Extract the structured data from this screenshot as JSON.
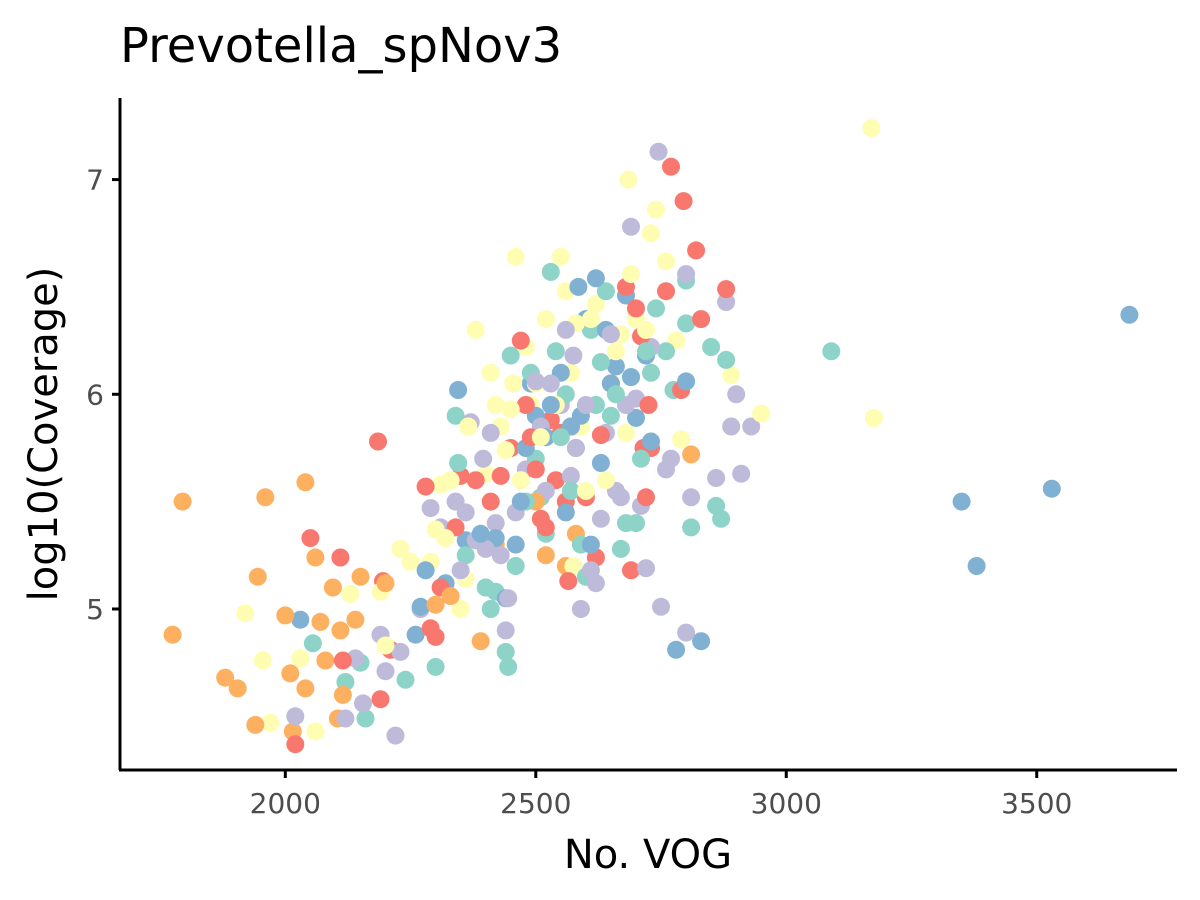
{
  "chart_data": {
    "type": "scatter",
    "title": "Prevotella_spNov3",
    "xlabel": "No. VOG",
    "ylabel": "log10(Coverage)",
    "xlim": [
      1670,
      3780
    ],
    "ylim": [
      4.25,
      7.38
    ],
    "xticks": [
      2000,
      2500,
      3000,
      3500
    ],
    "yticks": [
      5,
      6,
      7
    ],
    "grid": false,
    "legend": "none",
    "colors": {
      "salmon": "#f8786f",
      "orange": "#fdb05f",
      "yellow": "#fefdb1",
      "teal": "#8dd3c7",
      "lavender": "#bebada",
      "blue": "#80b1d3"
    },
    "series": [
      {
        "color": "#fdb05f",
        "points": [
          [
            1775,
            4.88
          ],
          [
            1795,
            5.5
          ],
          [
            1880,
            4.68
          ],
          [
            1905,
            4.63
          ],
          [
            1940,
            4.46
          ],
          [
            1945,
            5.15
          ],
          [
            1960,
            5.52
          ],
          [
            2000,
            4.97
          ],
          [
            2010,
            4.7
          ],
          [
            2015,
            4.43
          ],
          [
            2040,
            5.59
          ],
          [
            2040,
            4.63
          ],
          [
            2060,
            5.24
          ],
          [
            2070,
            4.94
          ],
          [
            2080,
            4.76
          ],
          [
            2095,
            5.1
          ],
          [
            2105,
            4.49
          ],
          [
            2110,
            4.9
          ],
          [
            2115,
            4.6
          ],
          [
            2140,
            4.95
          ],
          [
            2150,
            5.15
          ],
          [
            2200,
            5.12
          ],
          [
            2300,
            5.02
          ],
          [
            2330,
            5.06
          ],
          [
            2390,
            4.85
          ],
          [
            2420,
            5.3
          ],
          [
            2500,
            5.5
          ],
          [
            2520,
            5.25
          ],
          [
            2560,
            5.2
          ],
          [
            2580,
            5.35
          ],
          [
            2810,
            5.72
          ]
        ]
      },
      {
        "color": "#f8786f",
        "points": [
          [
            2020,
            4.37
          ],
          [
            2050,
            5.33
          ],
          [
            2110,
            5.24
          ],
          [
            2115,
            4.76
          ],
          [
            2185,
            5.78
          ],
          [
            2190,
            4.58
          ],
          [
            2195,
            5.13
          ],
          [
            2210,
            4.81
          ],
          [
            2280,
            5.57
          ],
          [
            2290,
            4.91
          ],
          [
            2300,
            4.87
          ],
          [
            2310,
            5.1
          ],
          [
            2340,
            5.38
          ],
          [
            2350,
            5.62
          ],
          [
            2380,
            5.6
          ],
          [
            2410,
            5.5
          ],
          [
            2430,
            5.62
          ],
          [
            2450,
            5.75
          ],
          [
            2470,
            6.25
          ],
          [
            2480,
            5.95
          ],
          [
            2490,
            5.8
          ],
          [
            2500,
            5.65
          ],
          [
            2510,
            5.42
          ],
          [
            2520,
            5.38
          ],
          [
            2530,
            5.88
          ],
          [
            2540,
            5.6
          ],
          [
            2550,
            5.82
          ],
          [
            2560,
            5.5
          ],
          [
            2565,
            5.13
          ],
          [
            2570,
            5.85
          ],
          [
            2600,
            5.52
          ],
          [
            2620,
            5.24
          ],
          [
            2630,
            5.81
          ],
          [
            2650,
            6.05
          ],
          [
            2680,
            6.5
          ],
          [
            2690,
            5.18
          ],
          [
            2700,
            6.4
          ],
          [
            2710,
            6.27
          ],
          [
            2715,
            5.75
          ],
          [
            2720,
            5.52
          ],
          [
            2725,
            5.95
          ],
          [
            2730,
            5.75
          ],
          [
            2760,
            6.48
          ],
          [
            2770,
            7.06
          ],
          [
            2790,
            6.02
          ],
          [
            2795,
            6.9
          ],
          [
            2820,
            6.67
          ],
          [
            2830,
            6.35
          ],
          [
            2880,
            6.49
          ]
        ]
      },
      {
        "color": "#fefdb1",
        "points": [
          [
            1920,
            4.98
          ],
          [
            1955,
            4.76
          ],
          [
            1970,
            4.47
          ],
          [
            2030,
            4.77
          ],
          [
            2060,
            4.43
          ],
          [
            2130,
            5.07
          ],
          [
            2190,
            5.08
          ],
          [
            2200,
            4.83
          ],
          [
            2230,
            5.28
          ],
          [
            2250,
            5.22
          ],
          [
            2290,
            5.22
          ],
          [
            2300,
            5.37
          ],
          [
            2310,
            5.58
          ],
          [
            2320,
            5.33
          ],
          [
            2330,
            5.6
          ],
          [
            2350,
            5
          ],
          [
            2360,
            5.14
          ],
          [
            2365,
            5.85
          ],
          [
            2380,
            6.3
          ],
          [
            2400,
            5.63
          ],
          [
            2410,
            6.1
          ],
          [
            2420,
            5.95
          ],
          [
            2430,
            5.85
          ],
          [
            2440,
            5.74
          ],
          [
            2450,
            5.93
          ],
          [
            2455,
            6.05
          ],
          [
            2460,
            6.64
          ],
          [
            2470,
            5.6
          ],
          [
            2480,
            6.22
          ],
          [
            2490,
            5.95
          ],
          [
            2500,
            6.05
          ],
          [
            2510,
            5.8
          ],
          [
            2520,
            6.35
          ],
          [
            2540,
            5.95
          ],
          [
            2550,
            6.64
          ],
          [
            2560,
            6.48
          ],
          [
            2570,
            6.1
          ],
          [
            2575,
            5.2
          ],
          [
            2580,
            6.33
          ],
          [
            2590,
            5.85
          ],
          [
            2600,
            5.55
          ],
          [
            2610,
            6.35
          ],
          [
            2620,
            6.42
          ],
          [
            2640,
            5.6
          ],
          [
            2660,
            6.2
          ],
          [
            2670,
            6.28
          ],
          [
            2680,
            5.82
          ],
          [
            2685,
            7
          ],
          [
            2690,
            6.56
          ],
          [
            2700,
            6.35
          ],
          [
            2720,
            6.3
          ],
          [
            2730,
            6.75
          ],
          [
            2740,
            6.86
          ],
          [
            2760,
            6.62
          ],
          [
            2780,
            6.25
          ],
          [
            2790,
            5.79
          ],
          [
            2890,
            6.09
          ],
          [
            2950,
            5.91
          ],
          [
            3170,
            7.24
          ],
          [
            3175,
            5.89
          ]
        ]
      },
      {
        "color": "#8dd3c7",
        "points": [
          [
            2055,
            4.84
          ],
          [
            2120,
            4.66
          ],
          [
            2150,
            4.75
          ],
          [
            2160,
            4.49
          ],
          [
            2240,
            4.67
          ],
          [
            2300,
            4.73
          ],
          [
            2340,
            5.9
          ],
          [
            2345,
            5.68
          ],
          [
            2360,
            5.25
          ],
          [
            2400,
            5.1
          ],
          [
            2410,
            5
          ],
          [
            2420,
            5.08
          ],
          [
            2440,
            4.8
          ],
          [
            2445,
            4.73
          ],
          [
            2450,
            6.18
          ],
          [
            2460,
            5.2
          ],
          [
            2480,
            5.5
          ],
          [
            2490,
            6.1
          ],
          [
            2500,
            5.7
          ],
          [
            2510,
            5.52
          ],
          [
            2520,
            5.35
          ],
          [
            2530,
            6.57
          ],
          [
            2540,
            6.2
          ],
          [
            2550,
            5.8
          ],
          [
            2560,
            6
          ],
          [
            2570,
            5.55
          ],
          [
            2580,
            5.75
          ],
          [
            2590,
            5.3
          ],
          [
            2600,
            5.15
          ],
          [
            2610,
            6.3
          ],
          [
            2620,
            5.95
          ],
          [
            2630,
            6.15
          ],
          [
            2640,
            6.48
          ],
          [
            2650,
            5.9
          ],
          [
            2660,
            6
          ],
          [
            2670,
            5.28
          ],
          [
            2680,
            5.4
          ],
          [
            2690,
            6.08
          ],
          [
            2700,
            5.4
          ],
          [
            2710,
            5.7
          ],
          [
            2720,
            6.2
          ],
          [
            2730,
            6.1
          ],
          [
            2740,
            6.4
          ],
          [
            2760,
            6.2
          ],
          [
            2775,
            6.02
          ],
          [
            2800,
            6.53
          ],
          [
            2800,
            6.33
          ],
          [
            2810,
            5.38
          ],
          [
            2850,
            6.22
          ],
          [
            2870,
            5.42
          ],
          [
            2860,
            5.48
          ],
          [
            2880,
            6.16
          ],
          [
            3090,
            6.2
          ]
        ]
      },
      {
        "color": "#bebada",
        "points": [
          [
            2020,
            4.5
          ],
          [
            2120,
            4.49
          ],
          [
            2140,
            4.77
          ],
          [
            2155,
            4.56
          ],
          [
            2190,
            4.88
          ],
          [
            2200,
            4.71
          ],
          [
            2220,
            4.41
          ],
          [
            2230,
            4.8
          ],
          [
            2270,
            5
          ],
          [
            2290,
            5.47
          ],
          [
            2310,
            5.38
          ],
          [
            2340,
            5.5
          ],
          [
            2350,
            5.18
          ],
          [
            2360,
            5.45
          ],
          [
            2370,
            5.87
          ],
          [
            2380,
            5.32
          ],
          [
            2395,
            5.7
          ],
          [
            2400,
            5.28
          ],
          [
            2410,
            5.82
          ],
          [
            2420,
            5.4
          ],
          [
            2430,
            5.25
          ],
          [
            2440,
            4.9
          ],
          [
            2445,
            5.05
          ],
          [
            2460,
            5.45
          ],
          [
            2480,
            5.65
          ],
          [
            2500,
            6.06
          ],
          [
            2510,
            5.85
          ],
          [
            2520,
            5.55
          ],
          [
            2530,
            6.05
          ],
          [
            2550,
            5.95
          ],
          [
            2560,
            6.3
          ],
          [
            2570,
            5.62
          ],
          [
            2575,
            6.18
          ],
          [
            2580,
            5.75
          ],
          [
            2590,
            5
          ],
          [
            2600,
            5.95
          ],
          [
            2610,
            5.18
          ],
          [
            2620,
            5.12
          ],
          [
            2630,
            5.42
          ],
          [
            2640,
            5.82
          ],
          [
            2650,
            6.28
          ],
          [
            2660,
            5.55
          ],
          [
            2670,
            5.52
          ],
          [
            2680,
            5.95
          ],
          [
            2690,
            6.78
          ],
          [
            2700,
            5.98
          ],
          [
            2710,
            5.48
          ],
          [
            2720,
            5.19
          ],
          [
            2730,
            6.22
          ],
          [
            2745,
            7.13
          ],
          [
            2750,
            5.01
          ],
          [
            2760,
            5.65
          ],
          [
            2770,
            5.7
          ],
          [
            2800,
            6.56
          ],
          [
            2800,
            4.89
          ],
          [
            2810,
            5.52
          ],
          [
            2860,
            5.61
          ],
          [
            2880,
            6.43
          ],
          [
            2890,
            5.85
          ],
          [
            2900,
            6
          ],
          [
            2910,
            5.63
          ],
          [
            2930,
            5.85
          ]
        ]
      },
      {
        "color": "#80b1d3",
        "points": [
          [
            2030,
            4.95
          ],
          [
            2260,
            4.88
          ],
          [
            2270,
            5.01
          ],
          [
            2280,
            5.18
          ],
          [
            2320,
            5.12
          ],
          [
            2345,
            6.02
          ],
          [
            2360,
            5.32
          ],
          [
            2390,
            5.35
          ],
          [
            2420,
            5.33
          ],
          [
            2440,
            5.05
          ],
          [
            2460,
            5.3
          ],
          [
            2470,
            5.5
          ],
          [
            2480,
            5.75
          ],
          [
            2490,
            6.05
          ],
          [
            2500,
            5.9
          ],
          [
            2520,
            5.8
          ],
          [
            2530,
            5.95
          ],
          [
            2550,
            6.1
          ],
          [
            2560,
            5.45
          ],
          [
            2570,
            5.85
          ],
          [
            2585,
            6.5
          ],
          [
            2590,
            5.9
          ],
          [
            2600,
            6.35
          ],
          [
            2610,
            5.3
          ],
          [
            2620,
            6.54
          ],
          [
            2630,
            5.68
          ],
          [
            2640,
            6.3
          ],
          [
            2650,
            6.05
          ],
          [
            2660,
            6.13
          ],
          [
            2680,
            6.46
          ],
          [
            2690,
            6.08
          ],
          [
            2700,
            5.89
          ],
          [
            2720,
            6.18
          ],
          [
            2730,
            5.78
          ],
          [
            2780,
            4.81
          ],
          [
            2800,
            6.06
          ],
          [
            2830,
            4.85
          ],
          [
            3350,
            5.5
          ],
          [
            3380,
            5.2
          ],
          [
            3530,
            5.56
          ],
          [
            3685,
            6.37
          ]
        ]
      }
    ]
  }
}
